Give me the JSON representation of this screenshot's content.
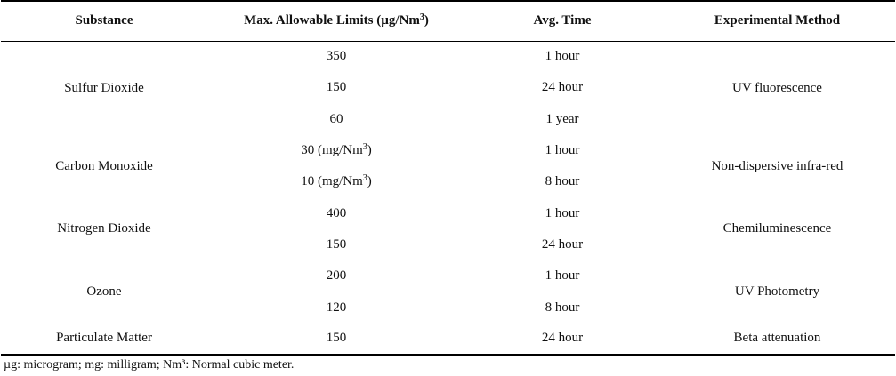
{
  "headers": {
    "substance": "Substance",
    "limit_prefix": "Max. Allowable  Limits (µg/Nm",
    "limit_sup": "3",
    "limit_suffix": ")",
    "avg_time": "Avg. Time",
    "method": "Experimental  Method"
  },
  "groups": [
    {
      "substance": "Sulfur Dioxide",
      "method": "UV fluorescence",
      "rows": [
        {
          "limit": "350",
          "limit_sup": "",
          "limit_suffix": "",
          "time": "1 hour"
        },
        {
          "limit": "150",
          "limit_sup": "",
          "limit_suffix": "",
          "time": "24 hour"
        },
        {
          "limit": "60",
          "limit_sup": "",
          "limit_suffix": "",
          "time": "1 year"
        }
      ]
    },
    {
      "substance": "Carbon Monoxide",
      "method": "Non-dispersive infra-red",
      "rows": [
        {
          "limit": "30 (mg/Nm",
          "limit_sup": "3",
          "limit_suffix": ")",
          "time": "1 hour"
        },
        {
          "limit": "10 (mg/Nm",
          "limit_sup": "3",
          "limit_suffix": ")",
          "time": "8 hour"
        }
      ]
    },
    {
      "substance": "Nitrogen Dioxide",
      "method": "Chemiluminescence",
      "rows": [
        {
          "limit": "400",
          "limit_sup": "",
          "limit_suffix": "",
          "time": "1 hour"
        },
        {
          "limit": "150",
          "limit_sup": "",
          "limit_suffix": "",
          "time": "24 hour"
        }
      ]
    },
    {
      "substance": "Ozone",
      "method": "UV Photometry",
      "rows": [
        {
          "limit": "200",
          "limit_sup": "",
          "limit_suffix": "",
          "time": "1 hour"
        },
        {
          "limit": "120",
          "limit_sup": "",
          "limit_suffix": "",
          "time": "8 hour"
        }
      ]
    },
    {
      "substance": "Particulate Matter",
      "method": "Beta attenuation",
      "rows": [
        {
          "limit": "150",
          "limit_sup": "",
          "limit_suffix": "",
          "time": "24 hour"
        }
      ]
    }
  ],
  "footnote": "µg: microgram; mg: milligram; Nm³: Normal cubic meter."
}
